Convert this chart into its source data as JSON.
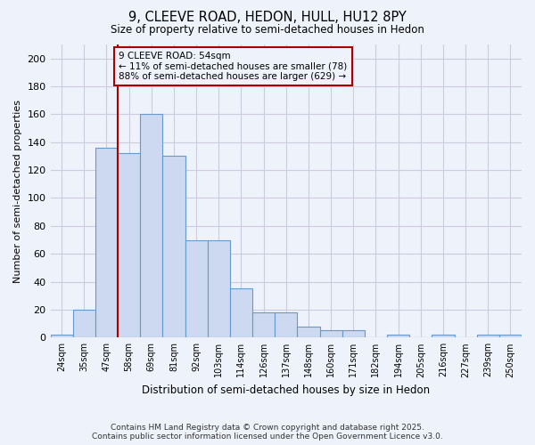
{
  "title_line1": "9, CLEEVE ROAD, HEDON, HULL, HU12 8PY",
  "title_line2": "Size of property relative to semi-detached houses in Hedon",
  "xlabel": "Distribution of semi-detached houses by size in Hedon",
  "ylabel": "Number of semi-detached properties",
  "categories": [
    "24sqm",
    "35sqm",
    "47sqm",
    "58sqm",
    "69sqm",
    "81sqm",
    "92sqm",
    "103sqm",
    "114sqm",
    "126sqm",
    "137sqm",
    "148sqm",
    "160sqm",
    "171sqm",
    "182sqm",
    "194sqm",
    "205sqm",
    "216sqm",
    "227sqm",
    "239sqm",
    "250sqm"
  ],
  "bar_heights": [
    2,
    20,
    136,
    132,
    160,
    130,
    70,
    70,
    35,
    18,
    18,
    8,
    5,
    5,
    0,
    2,
    0,
    2,
    0,
    2,
    2
  ],
  "bar_color": "#ccd9f0",
  "bar_edge_color": "#6699cc",
  "property_size_idx": 3,
  "red_line_color": "#aa0000",
  "annotation_text": "9 CLEEVE ROAD: 54sqm\n← 11% of semi-detached houses are smaller (78)\n88% of semi-detached houses are larger (629) →",
  "ylim": [
    0,
    210
  ],
  "yticks": [
    0,
    20,
    40,
    60,
    80,
    100,
    120,
    140,
    160,
    180,
    200
  ],
  "footer_line1": "Contains HM Land Registry data © Crown copyright and database right 2025.",
  "footer_line2": "Contains public sector information licensed under the Open Government Licence v3.0.",
  "background_color": "#eef2fb",
  "grid_color": "#ccccdd"
}
